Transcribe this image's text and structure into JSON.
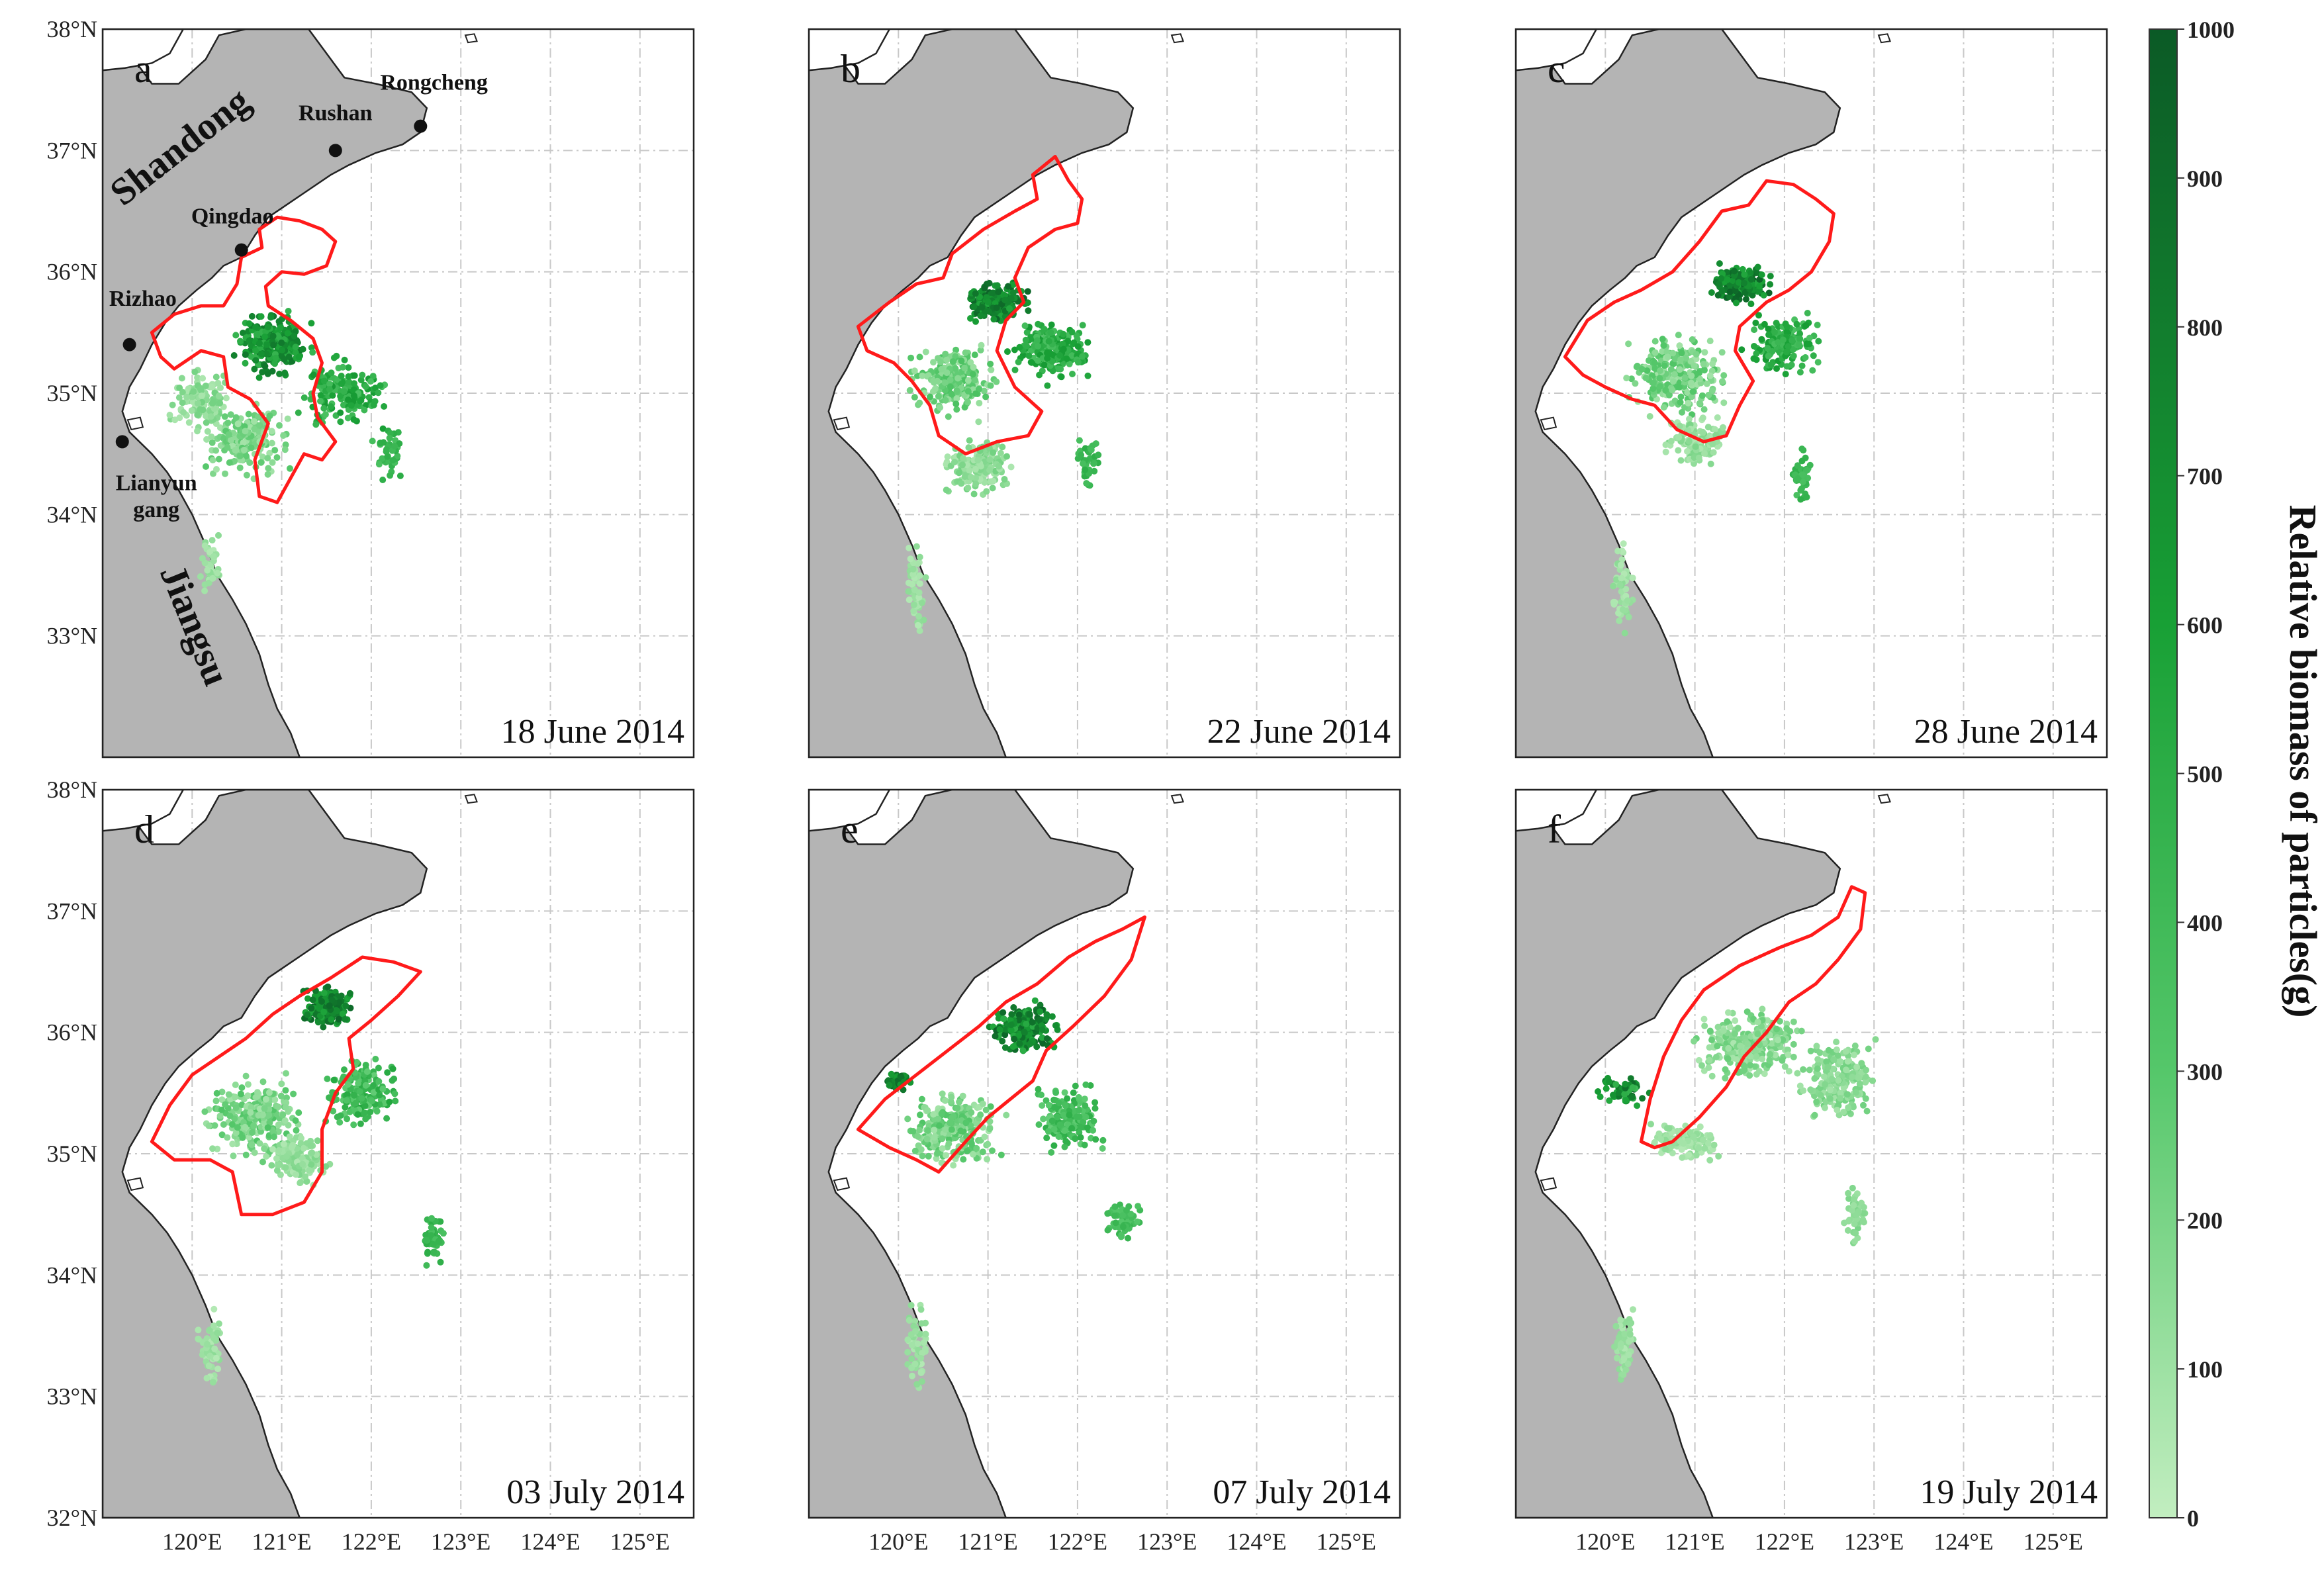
{
  "figure": {
    "x_axis_labels": [
      "120°E",
      "121°E",
      "122°E",
      "123°E",
      "124°E",
      "125°E"
    ],
    "y_axis_labels": [
      "38°N",
      "37°N",
      "36°N",
      "35°N",
      "34°N",
      "33°N",
      "32°N"
    ],
    "land_color": "#b4b4b4",
    "sea_color": "#ffffff",
    "contour_color": "#ff1a1a",
    "grid_style": "dash-dot light gray",
    "panels": [
      {
        "letter": "a",
        "date": "18 June 2014"
      },
      {
        "letter": "b",
        "date": "22 June 2014"
      },
      {
        "letter": "c",
        "date": "28 June 2014"
      },
      {
        "letter": "d",
        "date": "03 July 2014"
      },
      {
        "letter": "e",
        "date": "07 July 2014"
      },
      {
        "letter": "f",
        "date": "19 July 2014"
      }
    ],
    "place_labels": {
      "shandong": "Shandong",
      "jiangsu": "Jiangsu",
      "rongcheng": "Rongcheng",
      "rushan": "Rushan",
      "qingdao": "Qingdao",
      "rizhao": "Rizhao",
      "lianyungang_line1": "Lianyun",
      "lianyungang_line2": "gang"
    },
    "colorbar": {
      "title": "Relative biomass of particles(g)",
      "ticks": [
        "1000",
        "900",
        "800",
        "700",
        "600",
        "500",
        "400",
        "300",
        "200",
        "100",
        "0"
      ],
      "color_low": "#c2eec0",
      "color_high": "#0b5a26"
    }
  }
}
